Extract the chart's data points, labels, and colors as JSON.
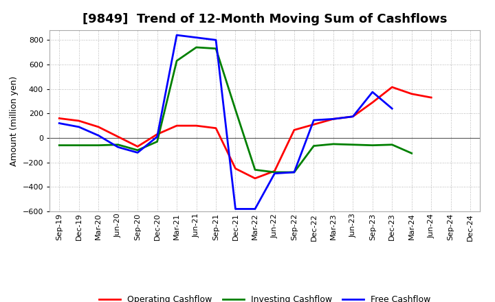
{
  "title": "[9849]  Trend of 12-Month Moving Sum of Cashflows",
  "ylabel": "Amount (million yen)",
  "xlabels": [
    "Sep-19",
    "Dec-19",
    "Mar-20",
    "Jun-20",
    "Sep-20",
    "Dec-20",
    "Mar-21",
    "Jun-21",
    "Sep-21",
    "Dec-21",
    "Mar-22",
    "Jun-22",
    "Sep-22",
    "Dec-22",
    "Mar-23",
    "Jun-23",
    "Sep-23",
    "Dec-23",
    "Mar-24",
    "Jun-24",
    "Sep-24",
    "Dec-24"
  ],
  "operating_cashflow": [
    160,
    140,
    90,
    10,
    -70,
    30,
    100,
    100,
    80,
    -250,
    -330,
    -270,
    65,
    110,
    155,
    175,
    290,
    415,
    360,
    330,
    null,
    null
  ],
  "investing_cashflow": [
    -60,
    -60,
    -60,
    -55,
    -100,
    -30,
    630,
    740,
    730,
    230,
    -260,
    -280,
    -280,
    -65,
    -50,
    -55,
    -60,
    -55,
    -125,
    null,
    null,
    null
  ],
  "free_cashflow": [
    120,
    90,
    20,
    -75,
    -120,
    10,
    840,
    820,
    800,
    -580,
    -580,
    -290,
    -280,
    145,
    155,
    175,
    375,
    240,
    null,
    null,
    null,
    null
  ],
  "operating_color": "#ff0000",
  "investing_color": "#008000",
  "free_color": "#0000ff",
  "ylim": [
    -600,
    880
  ],
  "yticks": [
    -600,
    -400,
    -200,
    0,
    200,
    400,
    600,
    800
  ],
  "background_color": "#ffffff",
  "grid_color": "#999999",
  "title_fontsize": 13,
  "axis_fontsize": 9,
  "tick_fontsize": 8,
  "linewidth": 2.0
}
